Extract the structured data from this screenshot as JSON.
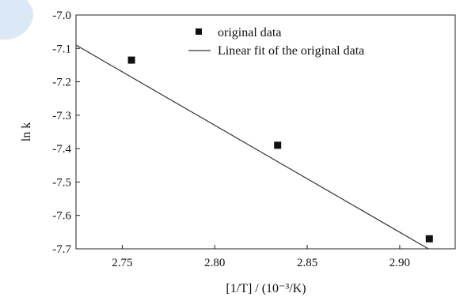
{
  "chart_data": {
    "type": "scatter",
    "xlabel": "[1/T] / (10⁻³/K)",
    "ylabel": "ln k",
    "xlim": [
      2.725,
      2.93
    ],
    "ylim": [
      -7.7,
      -7.0
    ],
    "xticks": [
      "2.75",
      "2.80",
      "2.85",
      "2.90"
    ],
    "yticks": [
      "-7.0",
      "-7.1",
      "-7.2",
      "-7.3",
      "-7.4",
      "-7.5",
      "-7.6",
      "-7.7"
    ],
    "grid": false,
    "legend_position": "top-right",
    "series": [
      {
        "name": "original data",
        "kind": "points",
        "marker": "square",
        "x": [
          2.755,
          2.834,
          2.916
        ],
        "y": [
          -7.135,
          -7.39,
          -7.67
        ]
      },
      {
        "name": "Linear fit of the original data",
        "kind": "line",
        "x": [
          2.725,
          2.928
        ],
        "y": [
          -7.09,
          -7.74
        ]
      }
    ],
    "colors": {
      "marker": "#111111",
      "line": "#333333",
      "corner_shape": "#dbe8f6"
    }
  }
}
